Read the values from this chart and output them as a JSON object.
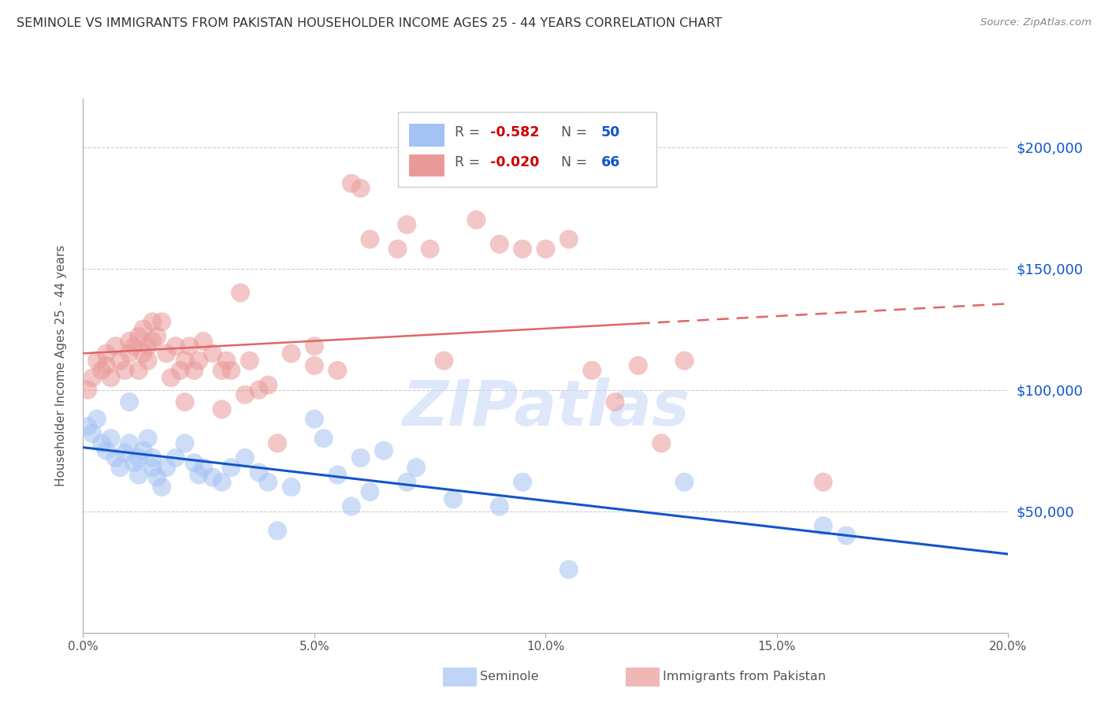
{
  "title": "SEMINOLE VS IMMIGRANTS FROM PAKISTAN HOUSEHOLDER INCOME AGES 25 - 44 YEARS CORRELATION CHART",
  "source": "Source: ZipAtlas.com",
  "ylabel": "Householder Income Ages 25 - 44 years",
  "xlabel_ticks": [
    "0.0%",
    "5.0%",
    "10.0%",
    "15.0%",
    "20.0%"
  ],
  "xlabel_vals": [
    0.0,
    5.0,
    10.0,
    15.0,
    20.0
  ],
  "ylim": [
    0,
    220000
  ],
  "xlim": [
    0.0,
    20.0
  ],
  "blue_R": "-0.582",
  "blue_N": "50",
  "pink_R": "-0.020",
  "pink_N": "66",
  "watermark": "ZIPatlas",
  "blue_color": "#a4c2f4",
  "pink_color": "#ea9999",
  "blue_line_color": "#1155cc",
  "pink_line_color": "#e06666",
  "blue_scatter": [
    [
      0.1,
      85000
    ],
    [
      0.2,
      82000
    ],
    [
      0.3,
      88000
    ],
    [
      0.4,
      78000
    ],
    [
      0.5,
      75000
    ],
    [
      0.6,
      80000
    ],
    [
      0.7,
      72000
    ],
    [
      0.8,
      68000
    ],
    [
      0.9,
      74000
    ],
    [
      1.0,
      95000
    ],
    [
      1.0,
      78000
    ],
    [
      1.1,
      70000
    ],
    [
      1.2,
      65000
    ],
    [
      1.2,
      72000
    ],
    [
      1.3,
      75000
    ],
    [
      1.4,
      80000
    ],
    [
      1.5,
      68000
    ],
    [
      1.5,
      72000
    ],
    [
      1.6,
      64000
    ],
    [
      1.7,
      60000
    ],
    [
      1.8,
      68000
    ],
    [
      2.0,
      72000
    ],
    [
      2.2,
      78000
    ],
    [
      2.4,
      70000
    ],
    [
      2.5,
      65000
    ],
    [
      2.6,
      68000
    ],
    [
      2.8,
      64000
    ],
    [
      3.0,
      62000
    ],
    [
      3.2,
      68000
    ],
    [
      3.5,
      72000
    ],
    [
      3.8,
      66000
    ],
    [
      4.0,
      62000
    ],
    [
      4.2,
      42000
    ],
    [
      4.5,
      60000
    ],
    [
      5.0,
      88000
    ],
    [
      5.2,
      80000
    ],
    [
      5.5,
      65000
    ],
    [
      5.8,
      52000
    ],
    [
      6.0,
      72000
    ],
    [
      6.2,
      58000
    ],
    [
      6.5,
      75000
    ],
    [
      7.0,
      62000
    ],
    [
      7.2,
      68000
    ],
    [
      8.0,
      55000
    ],
    [
      9.0,
      52000
    ],
    [
      9.5,
      62000
    ],
    [
      10.5,
      26000
    ],
    [
      13.0,
      62000
    ],
    [
      16.0,
      44000
    ],
    [
      16.5,
      40000
    ]
  ],
  "pink_scatter": [
    [
      0.1,
      100000
    ],
    [
      0.2,
      105000
    ],
    [
      0.3,
      112000
    ],
    [
      0.4,
      108000
    ],
    [
      0.5,
      110000
    ],
    [
      0.5,
      115000
    ],
    [
      0.6,
      105000
    ],
    [
      0.7,
      118000
    ],
    [
      0.8,
      112000
    ],
    [
      0.9,
      108000
    ],
    [
      1.0,
      120000
    ],
    [
      1.0,
      115000
    ],
    [
      1.1,
      118000
    ],
    [
      1.2,
      122000
    ],
    [
      1.2,
      108000
    ],
    [
      1.3,
      125000
    ],
    [
      1.3,
      115000
    ],
    [
      1.4,
      112000
    ],
    [
      1.4,
      118000
    ],
    [
      1.5,
      128000
    ],
    [
      1.5,
      120000
    ],
    [
      1.6,
      122000
    ],
    [
      1.7,
      128000
    ],
    [
      1.8,
      115000
    ],
    [
      1.9,
      105000
    ],
    [
      2.0,
      118000
    ],
    [
      2.1,
      108000
    ],
    [
      2.2,
      112000
    ],
    [
      2.2,
      95000
    ],
    [
      2.3,
      118000
    ],
    [
      2.4,
      108000
    ],
    [
      2.5,
      112000
    ],
    [
      2.6,
      120000
    ],
    [
      2.8,
      115000
    ],
    [
      3.0,
      92000
    ],
    [
      3.0,
      108000
    ],
    [
      3.1,
      112000
    ],
    [
      3.2,
      108000
    ],
    [
      3.4,
      140000
    ],
    [
      3.5,
      98000
    ],
    [
      3.6,
      112000
    ],
    [
      3.8,
      100000
    ],
    [
      4.0,
      102000
    ],
    [
      4.2,
      78000
    ],
    [
      4.5,
      115000
    ],
    [
      5.0,
      110000
    ],
    [
      5.0,
      118000
    ],
    [
      5.5,
      108000
    ],
    [
      5.8,
      185000
    ],
    [
      6.0,
      183000
    ],
    [
      6.2,
      162000
    ],
    [
      6.8,
      158000
    ],
    [
      7.0,
      168000
    ],
    [
      7.5,
      158000
    ],
    [
      7.8,
      112000
    ],
    [
      8.5,
      170000
    ],
    [
      9.0,
      160000
    ],
    [
      9.5,
      158000
    ],
    [
      10.0,
      158000
    ],
    [
      10.5,
      162000
    ],
    [
      11.0,
      108000
    ],
    [
      11.5,
      95000
    ],
    [
      12.0,
      110000
    ],
    [
      12.5,
      78000
    ],
    [
      13.0,
      112000
    ],
    [
      16.0,
      62000
    ]
  ],
  "background_color": "#ffffff",
  "grid_color": "#cccccc"
}
